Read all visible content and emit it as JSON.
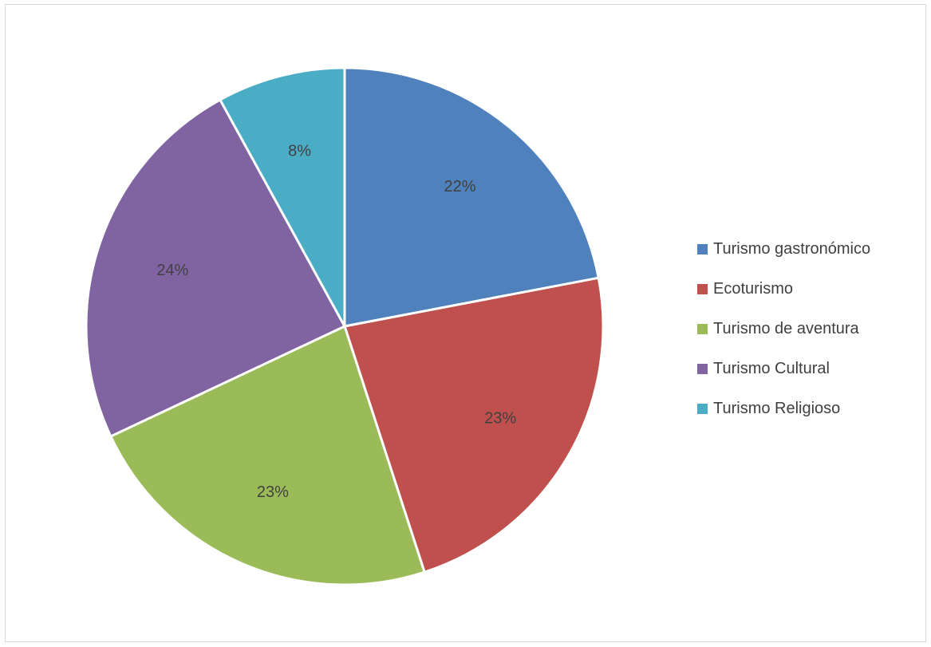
{
  "chart_data": {
    "type": "pie",
    "legend_position": "right",
    "slices": [
      {
        "name": "Turismo gastronómico",
        "value": 22,
        "label": "22%",
        "color": "#4f81bd"
      },
      {
        "name": "Ecoturismo",
        "value": 23,
        "label": "23%",
        "color": "#c0504d"
      },
      {
        "name": "Turismo de aventura",
        "value": 23,
        "label": "23%",
        "color": "#9bbb59"
      },
      {
        "name": "Turismo Cultural",
        "value": 24,
        "label": "24%",
        "color": "#8064a2"
      },
      {
        "name": "Turismo Religioso",
        "value": 8,
        "label": "8%",
        "color": "#4bacc6"
      }
    ]
  }
}
